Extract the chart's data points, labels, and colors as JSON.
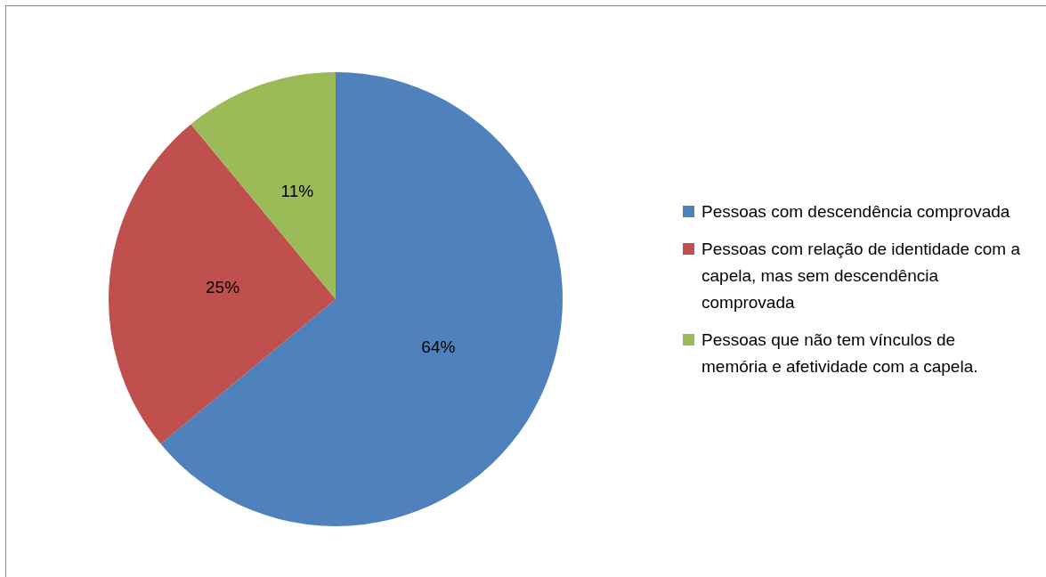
{
  "chart_data": {
    "type": "pie",
    "categories": [
      "Pessoas com descendência comprovada",
      "Pessoas com relação de identidade com a capela, mas sem descendência comprovada",
      "Pessoas que não tem vínculos de memória e afetividade com a capela."
    ],
    "values": [
      64,
      25,
      11
    ],
    "colors": [
      "#4f81bd",
      "#c0504d",
      "#9bbb59"
    ],
    "value_labels": [
      "64%",
      "25%",
      "11%"
    ],
    "legend": "right"
  }
}
